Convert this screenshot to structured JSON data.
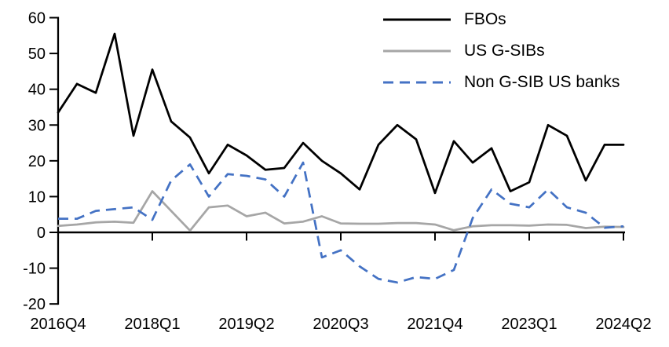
{
  "chart_data": {
    "type": "line",
    "title": "",
    "xlabel": "",
    "ylabel": "",
    "grid": false,
    "legend_position": "top-right",
    "ylim": [
      -20,
      60
    ],
    "y_ticks": [
      60,
      50,
      40,
      30,
      20,
      10,
      0,
      -10,
      -20
    ],
    "x_tick_labels": [
      "2016Q4",
      "2018Q1",
      "2019Q2",
      "2020Q3",
      "2021Q4",
      "2023Q1",
      "2024Q2"
    ],
    "x_tick_indices": [
      0,
      5,
      10,
      15,
      20,
      25,
      30
    ],
    "categories": [
      "2016Q4",
      "2017Q1",
      "2017Q2",
      "2017Q3",
      "2017Q4",
      "2018Q1",
      "2018Q2",
      "2018Q3",
      "2018Q4",
      "2019Q1",
      "2019Q2",
      "2019Q3",
      "2019Q4",
      "2020Q1",
      "2020Q2",
      "2020Q3",
      "2020Q4",
      "2021Q1",
      "2021Q2",
      "2021Q3",
      "2021Q4",
      "2022Q1",
      "2022Q2",
      "2022Q3",
      "2022Q4",
      "2023Q1",
      "2023Q2",
      "2023Q3",
      "2023Q4",
      "2024Q1",
      "2024Q2"
    ],
    "series": [
      {
        "name": "FBOs",
        "color": "#000000",
        "style": "solid",
        "values": [
          33.5,
          41.5,
          39,
          55.5,
          27,
          45.5,
          31,
          26.5,
          16.5,
          24.5,
          21.5,
          17.5,
          18,
          25,
          20,
          16.5,
          12,
          24.5,
          30,
          26,
          11,
          25.5,
          19.5,
          23.5,
          11.5,
          14,
          30,
          27,
          14.5,
          24.5,
          24.5
        ]
      },
      {
        "name": "US G-SIBs",
        "color": "#A6A6A6",
        "style": "solid",
        "values": [
          1.8,
          2.2,
          2.8,
          3,
          2.7,
          11.5,
          6,
          0.5,
          7,
          7.5,
          4.5,
          5.5,
          2.5,
          3,
          4.5,
          2.5,
          2.4,
          2.4,
          2.6,
          2.6,
          2.2,
          0.6,
          1.7,
          2,
          2,
          1.9,
          2.2,
          2.1,
          1.2,
          1.6,
          1.5
        ]
      },
      {
        "name": "Non G-SIB US banks",
        "color": "#4472C4",
        "style": "dashed",
        "values": [
          3.8,
          3.8,
          6,
          6.5,
          7,
          3.5,
          14.5,
          19,
          10,
          16.3,
          15.8,
          14.8,
          10,
          19.5,
          -7,
          -5,
          -9.5,
          -13,
          -14,
          -12.5,
          -13,
          -10.5,
          4,
          12,
          8,
          7,
          12,
          7,
          5.5,
          1.3,
          1.7
        ]
      }
    ]
  }
}
